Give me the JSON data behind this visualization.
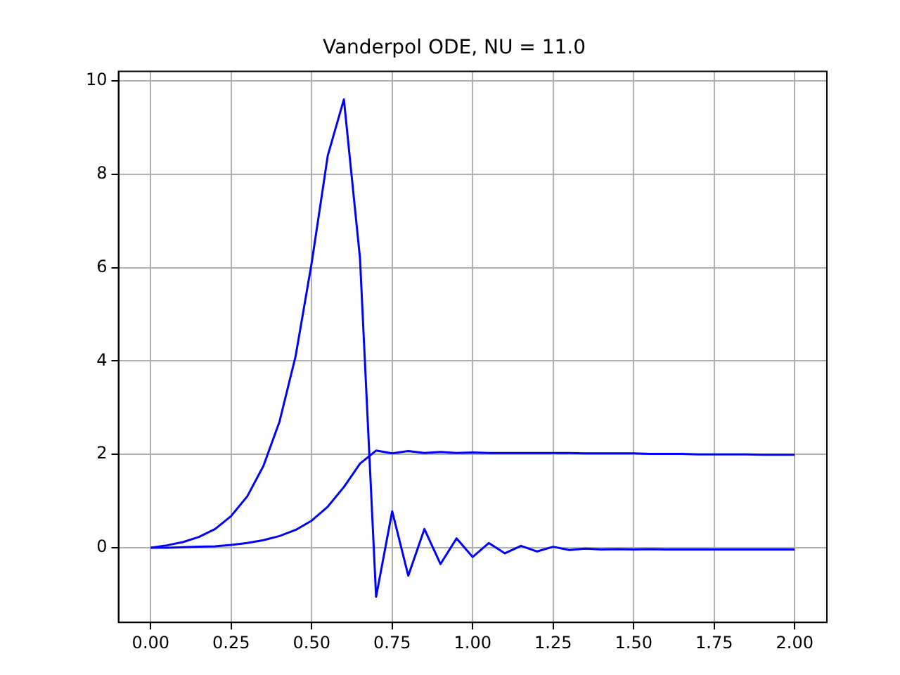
{
  "chart_data": {
    "type": "line",
    "title": "Vanderpol ODE, NU = 11.0",
    "x": [
      0,
      0.05,
      0.1,
      0.15,
      0.2,
      0.25,
      0.3,
      0.35,
      0.4,
      0.45,
      0.5,
      0.55,
      0.6,
      0.65,
      0.7,
      0.75,
      0.8,
      0.85,
      0.9,
      0.95,
      1.0,
      1.05,
      1.1,
      1.15,
      1.2,
      1.25,
      1.3,
      1.35,
      1.4,
      1.45,
      1.5,
      1.55,
      1.6,
      1.65,
      1.7,
      1.75,
      1.8,
      1.85,
      1.9,
      1.95,
      2.0
    ],
    "series": [
      {
        "color": "#0000ff",
        "values": [
          0,
          0.05,
          0.12,
          0.23,
          0.4,
          0.68,
          1.1,
          1.75,
          2.7,
          4.1,
          6.1,
          8.4,
          9.6,
          6.2,
          -1.05,
          0.78,
          -0.6,
          0.4,
          -0.35,
          0.2,
          -0.2,
          0.1,
          -0.12,
          0.04,
          -0.08,
          0.02,
          -0.05,
          -0.02,
          -0.04,
          -0.03,
          -0.04,
          -0.03,
          -0.04,
          -0.04,
          -0.04,
          -0.04,
          -0.04,
          -0.04,
          -0.04,
          -0.04,
          -0.04
        ]
      },
      {
        "color": "#0000ff",
        "values": [
          0,
          0,
          0.01,
          0.02,
          0.03,
          0.06,
          0.1,
          0.16,
          0.25,
          0.38,
          0.58,
          0.88,
          1.3,
          1.8,
          2.08,
          2.02,
          2.07,
          2.03,
          2.05,
          2.03,
          2.04,
          2.03,
          2.03,
          2.03,
          2.03,
          2.03,
          2.03,
          2.02,
          2.02,
          2.02,
          2.02,
          2.01,
          2.01,
          2.01,
          2.0,
          2.0,
          2.0,
          2.0,
          1.99,
          1.99,
          1.99
        ]
      }
    ],
    "xlim": [
      -0.1,
      2.1
    ],
    "ylim": [
      -1.6,
      10.2
    ],
    "xticks": [
      {
        "value": 0,
        "label": "0.00"
      },
      {
        "value": 0.25,
        "label": "0.25"
      },
      {
        "value": 0.5,
        "label": "0.50"
      },
      {
        "value": 0.75,
        "label": "0.75"
      },
      {
        "value": 1,
        "label": "1.00"
      },
      {
        "value": 1.25,
        "label": "1.25"
      },
      {
        "value": 1.5,
        "label": "1.50"
      },
      {
        "value": 1.75,
        "label": "1.75"
      },
      {
        "value": 2,
        "label": "2.00"
      }
    ],
    "yticks": [
      0,
      2,
      4,
      6,
      8,
      10
    ],
    "grid": true,
    "legend": false
  }
}
